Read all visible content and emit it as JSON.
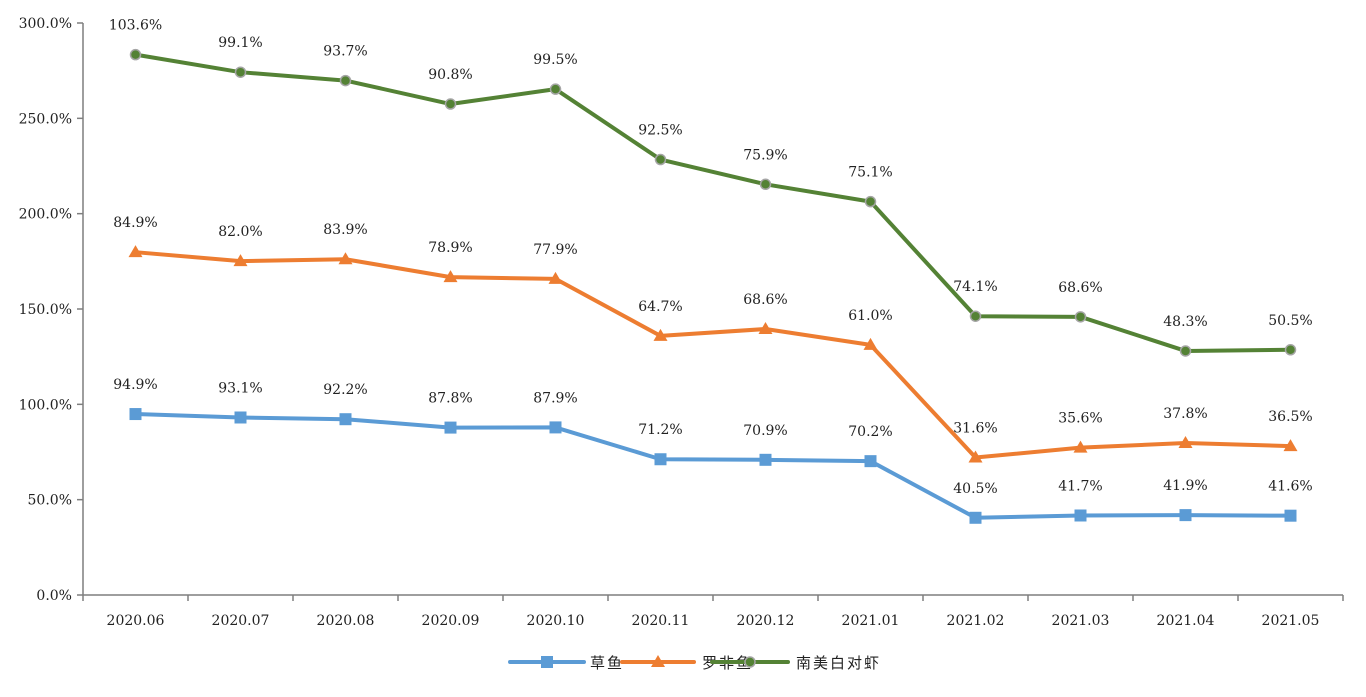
{
  "chart_data": {
    "type": "line",
    "stacked": true,
    "title": "",
    "xlabel": "",
    "ylabel": "",
    "ylim": [
      0,
      300
    ],
    "yticks": [
      "0.0%",
      "50.0%",
      "100.0%",
      "150.0%",
      "200.0%",
      "250.0%",
      "300.0%"
    ],
    "ytick_values": [
      0,
      50,
      100,
      150,
      200,
      250,
      300
    ],
    "grid": false,
    "legend_position": "bottom",
    "categories": [
      "2020.06",
      "2020.07",
      "2020.08",
      "2020.09",
      "2020.10",
      "2020.11",
      "2020.12",
      "2021.01",
      "2021.02",
      "2021.03",
      "2021.04",
      "2021.05"
    ],
    "series": [
      {
        "name": "草鱼",
        "color": "#5B9BD5",
        "marker": "square",
        "values": [
          94.9,
          93.1,
          92.2,
          87.8,
          87.9,
          71.2,
          70.9,
          70.2,
          40.5,
          41.7,
          41.9,
          41.6
        ],
        "labels": [
          "94.9%",
          "93.1%",
          "92.2%",
          "87.8%",
          "87.9%",
          "71.2%",
          "70.9%",
          "70.2%",
          "40.5%",
          "41.7%",
          "41.9%",
          "41.6%"
        ]
      },
      {
        "name": "罗非鱼",
        "color": "#ED7D31",
        "marker": "triangle",
        "values": [
          84.9,
          82.0,
          83.9,
          78.9,
          77.9,
          64.7,
          68.6,
          61.0,
          31.6,
          35.6,
          37.8,
          36.5
        ],
        "labels": [
          "84.9%",
          "82.0%",
          "83.9%",
          "78.9%",
          "77.9%",
          "64.7%",
          "68.6%",
          "61.0%",
          "31.6%",
          "35.6%",
          "37.8%",
          "36.5%"
        ]
      },
      {
        "name": "南美白对虾",
        "color": "#548235",
        "marker": "circle",
        "values": [
          103.6,
          99.1,
          93.7,
          90.8,
          99.5,
          92.5,
          75.9,
          75.1,
          74.1,
          68.6,
          48.3,
          50.5
        ],
        "labels": [
          "103.6%",
          "99.1%",
          "93.7%",
          "90.8%",
          "99.5%",
          "92.5%",
          "75.9%",
          "75.1%",
          "74.1%",
          "68.6%",
          "48.3%",
          "50.5%"
        ]
      }
    ]
  }
}
